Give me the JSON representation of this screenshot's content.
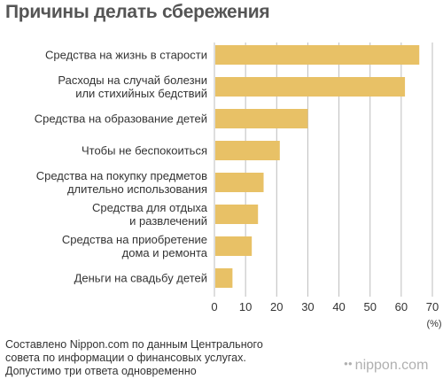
{
  "header": {
    "title": "Причины делать сбережения"
  },
  "chart_data": {
    "type": "bar",
    "orientation": "horizontal",
    "title": "Причины делать сбережения",
    "unit": "(%)",
    "categories": [
      [
        "Средства на жизнь в старости"
      ],
      [
        "Расходы на случай болезни",
        "или стихийных бедствий"
      ],
      [
        "Средства на образование детей"
      ],
      [
        "Чтобы не беспокоиться"
      ],
      [
        "Средства на покупку предметов",
        "длительно использования"
      ],
      [
        "Средства для отдыха",
        "и развлечений"
      ],
      [
        "Средства на приобретение",
        "дома и ремонта"
      ],
      [
        "Деньги на свадьбу детей"
      ]
    ],
    "values": [
      65.8,
      61.2,
      30,
      21,
      15.8,
      14,
      12,
      5.8
    ],
    "xlim": [
      0,
      70
    ],
    "xticks": [
      "0",
      "10",
      "20",
      "30",
      "40",
      "50",
      "60",
      "70"
    ],
    "grid": true,
    "bar_color": "#e8c166",
    "grid_color": "#bdbdbd"
  },
  "footer": {
    "source_lines": [
      "Составлено Nippon.com по данным Центрального",
      "совета по информации о финансовых услугах.",
      "Допустимо три ответа одновременно"
    ],
    "brand": "nippon.com"
  }
}
